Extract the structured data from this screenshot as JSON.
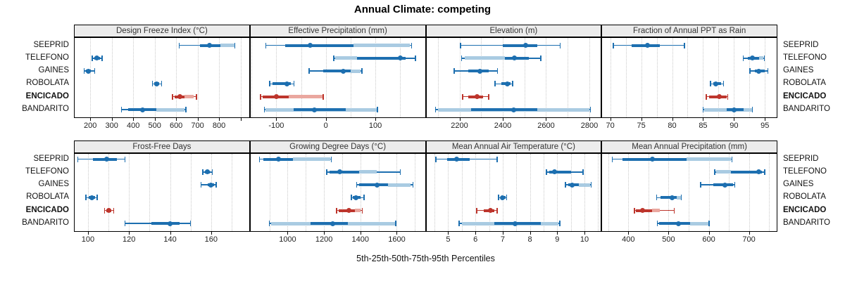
{
  "title": "Annual Climate: competing",
  "caption": "5th-25th-50th-75th-95th Percentiles",
  "sites": [
    {
      "name": "SEEPRID",
      "bold": false
    },
    {
      "name": "TELEFONO",
      "bold": false
    },
    {
      "name": "GAINES",
      "bold": false
    },
    {
      "name": "ROBOLATA",
      "bold": false
    },
    {
      "name": "ENCICADO",
      "bold": true
    },
    {
      "name": "BANDARITO",
      "bold": false
    }
  ],
  "highlight_site": "ENCICADO",
  "colors": {
    "blue": "#1d6fb0",
    "blue_light": "#a9cbe2",
    "red": "#bd352c",
    "red_light": "#eaa79f",
    "grid": "#c9c9c9",
    "border": "#000000",
    "strip_bg": "#ececec",
    "text": "#222222"
  },
  "chart_data": {
    "type": "interval-dotplot",
    "note": "per row: p = [5th,25th,50th,75th,95th] percentiles; band = light overlay interval",
    "panels": [
      {
        "title": "Design Freeze Index (°C)",
        "row": 0,
        "col": 0,
        "domain": [
          127,
          940
        ],
        "grid": [
          200,
          300,
          400,
          500,
          600,
          700,
          800,
          900
        ],
        "ticks": [
          [
            200,
            "200"
          ],
          [
            300,
            "300"
          ],
          [
            400,
            "400"
          ],
          [
            500,
            "500"
          ],
          [
            600,
            "600"
          ],
          [
            700,
            "700"
          ],
          [
            800,
            "800"
          ],
          [
            900,
            ""
          ]
        ],
        "rows": [
          {
            "site": "SEEPRID",
            "p": [
              615,
              710,
              755,
              805,
              873
            ],
            "band": [
              805,
              873
            ]
          },
          {
            "site": "TELEFONO",
            "p": [
              209,
              220,
              232,
              245,
              255
            ],
            "band": null
          },
          {
            "site": "GAINES",
            "p": [
              171,
              179,
              190,
              203,
              221
            ],
            "band": null
          },
          {
            "site": "ROBOLATA",
            "p": [
              490,
              497,
              510,
              521,
              532
            ],
            "band": null
          },
          {
            "site": "ENCICADO",
            "p": [
              583,
              593,
              619,
              640,
              695
            ],
            "band": [
              640,
              683
            ]
          },
          {
            "site": "BANDARITO",
            "p": [
              345,
              378,
              444,
              508,
              645
            ],
            "band": [
              508,
              638
            ]
          }
        ]
      },
      {
        "title": "Effective Precipitation (mm)",
        "row": 0,
        "col": 1,
        "domain": [
          -152,
          200
        ],
        "grid": [
          -150,
          -100,
          -50,
          0,
          50,
          100,
          150,
          200
        ],
        "ticks": [
          [
            -100,
            "-100"
          ],
          [
            0,
            "0"
          ],
          [
            100,
            "100"
          ]
        ],
        "rows": [
          {
            "site": "SEEPRID",
            "p": [
              -121,
              -82,
              -31,
              56,
              173
            ],
            "band": [
              56,
              170
            ]
          },
          {
            "site": "TELEFONO",
            "p": [
              16,
              63,
              150,
              161,
              181
            ],
            "band": [
              19,
              63
            ]
          },
          {
            "site": "GAINES",
            "p": [
              -34,
              -5,
              35,
              50,
              73
            ],
            "band": [
              50,
              70
            ]
          },
          {
            "site": "ROBOLATA",
            "p": [
              -113,
              -108,
              -79,
              -70,
              -64
            ],
            "band": null
          },
          {
            "site": "ENCICADO",
            "p": [
              -132,
              -128,
              -100,
              -75,
              -5
            ],
            "band": [
              -75,
              -6
            ]
          },
          {
            "site": "BANDARITO",
            "p": [
              -124,
              -65,
              -23,
              40,
              104
            ],
            "band": [
              -122,
              104
            ]
          }
        ]
      },
      {
        "title": "Elevation (m)",
        "row": 0,
        "col": 2,
        "domain": [
          2047,
          2853
        ],
        "grid": [
          2100,
          2200,
          2300,
          2400,
          2500,
          2600,
          2700,
          2800
        ],
        "ticks": [
          [
            2200,
            "2200"
          ],
          [
            2400,
            "2400"
          ],
          [
            2600,
            "2600"
          ],
          [
            2800,
            "2800"
          ]
        ],
        "rows": [
          {
            "site": "SEEPRID",
            "p": [
              2205,
              2400,
              2505,
              2560,
              2665
            ],
            "band": null
          },
          {
            "site": "TELEFONO",
            "p": [
              2210,
              2410,
              2455,
              2520,
              2575
            ],
            "band": [
              2225,
              2410
            ]
          },
          {
            "site": "GAINES",
            "p": [
              2175,
              2240,
              2295,
              2335,
              2375
            ],
            "band": null
          },
          {
            "site": "ROBOLATA",
            "p": [
              2365,
              2395,
              2420,
              2435,
              2445
            ],
            "band": null
          },
          {
            "site": "ENCICADO",
            "p": [
              2215,
              2240,
              2280,
              2310,
              2335
            ],
            "band": null
          },
          {
            "site": "BANDARITO",
            "p": [
              2090,
              2255,
              2450,
              2560,
              2805
            ],
            "band": [
              2100,
              2800
            ]
          }
        ]
      },
      {
        "title": "Fraction of Annual PPT as Rain",
        "row": 0,
        "col": 3,
        "domain": [
          68.7,
          96.9
        ],
        "grid": [
          70,
          72.5,
          75,
          77.5,
          80,
          82.5,
          85,
          87.5,
          90,
          92.5,
          95
        ],
        "ticks": [
          [
            70,
            "70"
          ],
          [
            75,
            "75"
          ],
          [
            80,
            "80"
          ],
          [
            85,
            "85"
          ],
          [
            90,
            "90"
          ],
          [
            95,
            "95"
          ]
        ],
        "rows": [
          {
            "site": "SEEPRID",
            "p": [
              70.5,
              73.5,
              76,
              78,
              82
            ],
            "band": null
          },
          {
            "site": "TELEFONO",
            "p": [
              91.5,
              92.2,
              93,
              94,
              94.9
            ],
            "band": [
              94,
              94.7
            ]
          },
          {
            "site": "GAINES",
            "p": [
              92.6,
              93.4,
              94,
              95,
              95.5
            ],
            "band": null
          },
          {
            "site": "ROBOLATA",
            "p": [
              86.2,
              86.7,
              87.1,
              87.9,
              88.3
            ],
            "band": null
          },
          {
            "site": "ENCICADO",
            "p": [
              85.5,
              86,
              87.6,
              88.8,
              89
            ],
            "band": null
          },
          {
            "site": "BANDARITO",
            "p": [
              85,
              88.8,
              90,
              91.6,
              93
            ],
            "band": [
              85.2,
              92.9
            ]
          }
        ]
      },
      {
        "title": "Frost-Free Days",
        "row": 1,
        "col": 0,
        "domain": [
          93.5,
          178.5
        ],
        "grid": [
          100,
          110,
          120,
          130,
          140,
          150,
          160,
          170
        ],
        "ticks": [
          [
            100,
            "100"
          ],
          [
            120,
            "120"
          ],
          [
            140,
            "140"
          ],
          [
            160,
            "160"
          ]
        ],
        "rows": [
          {
            "site": "SEEPRID",
            "p": [
              95,
              102.5,
              109,
              114,
              118
            ],
            "band": null
          },
          {
            "site": "TELEFONO",
            "p": [
              156,
              157,
              158.3,
              159.5,
              160.5
            ],
            "band": null
          },
          {
            "site": "GAINES",
            "p": [
              155,
              158.5,
              160,
              161.5,
              162.5
            ],
            "band": null
          },
          {
            "site": "ROBOLATA",
            "p": [
              99,
              100.5,
              102,
              103.5,
              104.5
            ],
            "band": null
          },
          {
            "site": "ENCICADO",
            "p": [
              108,
              109,
              110,
              111.5,
              112.5
            ],
            "band": null
          },
          {
            "site": "BANDARITO",
            "p": [
              118,
              131,
              140,
              144.5,
              150
            ],
            "band": null
          }
        ]
      },
      {
        "title": "Growing Degree Days (°C)",
        "row": 1,
        "col": 1,
        "domain": [
          796,
          1755
        ],
        "grid": [
          900,
          1000,
          1100,
          1200,
          1300,
          1400,
          1500,
          1600,
          1700
        ],
        "ticks": [
          [
            1000,
            "1000"
          ],
          [
            1200,
            "1200"
          ],
          [
            1400,
            "1400"
          ],
          [
            1600,
            "1600"
          ]
        ],
        "rows": [
          {
            "site": "SEEPRID",
            "p": [
              845,
              865,
              950,
              1030,
              1240
            ],
            "band": [
              1030,
              1235
            ]
          },
          {
            "site": "TELEFONO",
            "p": [
              1215,
              1230,
              1285,
              1395,
              1620
            ],
            "band": [
              1395,
              1490
            ]
          },
          {
            "site": "GAINES",
            "p": [
              1380,
              1395,
              1490,
              1550,
              1690
            ],
            "band": [
              1550,
              1675
            ]
          },
          {
            "site": "ROBOLATA",
            "p": [
              1350,
              1357,
              1375,
              1400,
              1420
            ],
            "band": null
          },
          {
            "site": "ENCICADO",
            "p": [
              1270,
              1280,
              1338,
              1370,
              1410
            ],
            "band": [
              1370,
              1400
            ]
          },
          {
            "site": "BANDARITO",
            "p": [
              900,
              1127,
              1248,
              1330,
              1595
            ],
            "band": [
              910,
              1590
            ]
          }
        ]
      },
      {
        "title": "Mean Annual Air Temperature (°C)",
        "row": 1,
        "col": 2,
        "domain": [
          4.2,
          10.6
        ],
        "grid": [
          4.5,
          5,
          5.5,
          6,
          6.5,
          7,
          7.5,
          8,
          8.5,
          9,
          9.5,
          10,
          10.5
        ],
        "ticks": [
          [
            5,
            "5"
          ],
          [
            6,
            "6"
          ],
          [
            7,
            "7"
          ],
          [
            8,
            "8"
          ],
          [
            9,
            "9"
          ],
          [
            10,
            "10"
          ]
        ],
        "rows": [
          {
            "site": "SEEPRID",
            "p": [
              4.55,
              4.95,
              5.3,
              5.8,
              6.8
            ],
            "band": null
          },
          {
            "site": "TELEFONO",
            "p": [
              8.6,
              8.7,
              8.9,
              9.5,
              9.95
            ],
            "band": null
          },
          {
            "site": "GAINES",
            "p": [
              9.3,
              9.4,
              9.55,
              9.8,
              10.25
            ],
            "band": [
              9.8,
              10.2
            ]
          },
          {
            "site": "ROBOLATA",
            "p": [
              6.85,
              6.95,
              7.0,
              7.1,
              7.15
            ],
            "band": null
          },
          {
            "site": "ENCICADO",
            "p": [
              6.05,
              6.3,
              6.55,
              6.7,
              6.8
            ],
            "band": null
          },
          {
            "site": "BANDARITO",
            "p": [
              5.4,
              6.7,
              7.45,
              8.4,
              9.1
            ],
            "band": [
              5.5,
              9.05
            ]
          }
        ]
      },
      {
        "title": "Mean Annual Precipitation (mm)",
        "row": 1,
        "col": 3,
        "domain": [
          335,
          769
        ],
        "grid": [
          350,
          400,
          450,
          500,
          550,
          600,
          650,
          700,
          750
        ],
        "ticks": [
          [
            400,
            "400"
          ],
          [
            500,
            "500"
          ],
          [
            600,
            "600"
          ],
          [
            700,
            "700"
          ]
        ],
        "rows": [
          {
            "site": "SEEPRID",
            "p": [
              360,
              385,
              460,
              545,
              658
            ],
            "band": [
              545,
              655
            ]
          },
          {
            "site": "TELEFONO",
            "p": [
              615,
              655,
              725,
              733,
              739
            ],
            "band": [
              618,
              655
            ]
          },
          {
            "site": "GAINES",
            "p": [
              580,
              612,
              640,
              660,
              665
            ],
            "band": null
          },
          {
            "site": "ROBOLATA",
            "p": [
              470,
              480,
              508,
              520,
              532
            ],
            "band": [
              520,
              531
            ]
          },
          {
            "site": "ENCICADO",
            "p": [
              415,
              419,
              436,
              459,
              514
            ],
            "band": [
              459,
              479
            ]
          },
          {
            "site": "BANDARITO",
            "p": [
              472,
              477,
              524,
              554,
              601
            ],
            "band": [
              554,
              600
            ]
          }
        ]
      }
    ]
  }
}
